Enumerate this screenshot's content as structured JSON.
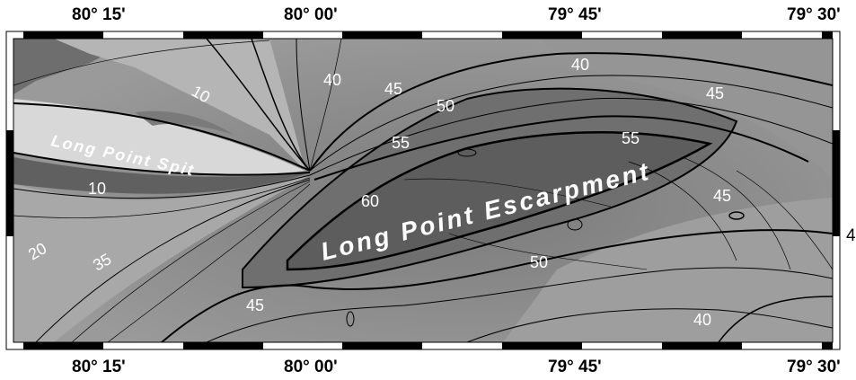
{
  "map": {
    "top_axis_labels": [
      "80° 15'",
      "80° 00'",
      "79° 45'",
      "79° 30'"
    ],
    "bottom_axis_labels": [
      "80° 15'",
      "80° 00'",
      "79° 45'",
      "79° 30'"
    ],
    "right_axis_partial_label": "4",
    "place_names": {
      "spit": "Long Point Spit",
      "escarpment": "Long Point Escarpment"
    },
    "contour_labels": [
      "10",
      "40",
      "40",
      "45",
      "50",
      "55",
      "55",
      "45",
      "60",
      "45",
      "10",
      "20",
      "35",
      "45",
      "50",
      "40"
    ],
    "colors": {
      "background_shade": "#8a8a8a",
      "spit_shade": "#d8d8d8",
      "land_shade": "#6e6e6e",
      "frame_black": "#000000",
      "label_white": "#ffffff"
    }
  }
}
